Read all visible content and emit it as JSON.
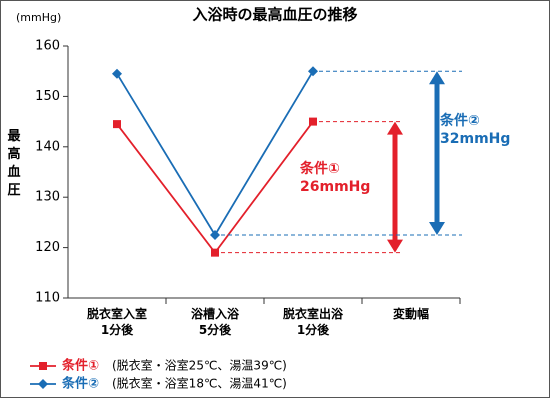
{
  "chart_data": {
    "type": "line",
    "title": "入浴時の最高血圧の推移",
    "y_unit": "(mmHg)",
    "y_label": "最高血圧",
    "categories": [
      "脱衣室入室\n1分後",
      "浴槽入浴\n5分後",
      "脱衣室出浴\n1分後",
      "変動幅"
    ],
    "series": [
      {
        "name": "条件①",
        "note": "(脱衣室・浴室25℃、湯温39℃)",
        "color": "#e3202b",
        "marker": "square",
        "values": [
          144.5,
          119,
          145,
          null
        ]
      },
      {
        "name": "条件②",
        "note": "(脱衣室・浴室18℃、湯温41℃)",
        "color": "#1a6db5",
        "marker": "diamond",
        "values": [
          154.5,
          122.5,
          155,
          null
        ]
      }
    ],
    "annotations": [
      "条件①\n26mmHg",
      "条件②\n32mmHg"
    ],
    "ylim": [
      110,
      160
    ],
    "yticks": [
      110,
      120,
      130,
      140,
      150,
      160
    ],
    "grid": false
  }
}
